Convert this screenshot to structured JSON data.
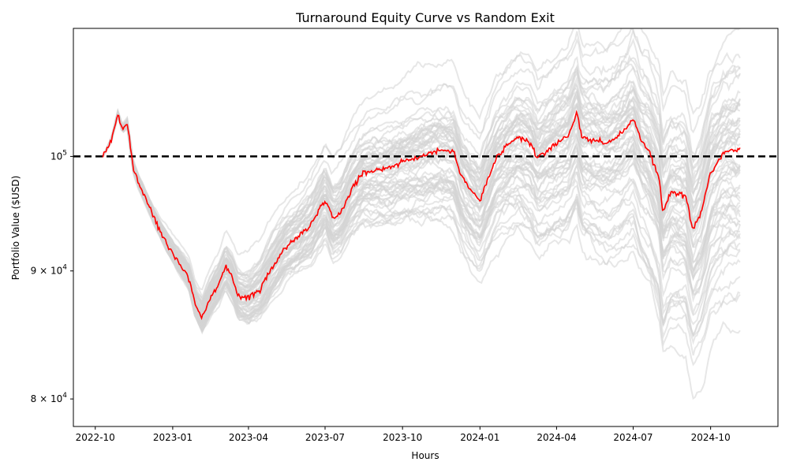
{
  "chart_data": {
    "type": "line",
    "title": "Turnaround Equity Curve vs Random Exit",
    "xlabel": "Hours",
    "ylabel": "Portfolio Value ($USD)",
    "y_scale": "log",
    "xlim": [
      "2022-09-05",
      "2024-12-20"
    ],
    "ylim": [
      78000,
      112500
    ],
    "grid": false,
    "x_ticks": [
      "2022-10",
      "2023-01",
      "2023-04",
      "2023-07",
      "2023-10",
      "2024-01",
      "2024-04",
      "2024-07",
      "2024-10"
    ],
    "y_ticks": [
      {
        "value": 80000,
        "base": "8",
        "exp": "4"
      },
      {
        "value": 90000,
        "base": "9",
        "exp": "4"
      },
      {
        "value": 100000,
        "base": "10",
        "exp": "5",
        "plain_power": true
      }
    ],
    "reference_line": {
      "value": 100000,
      "style": "dashed",
      "color": "#000000"
    },
    "main_series": {
      "color": "#ff0000",
      "x": [
        "2022-10-10",
        "2022-10-20",
        "2022-10-28",
        "2022-11-02",
        "2022-11-08",
        "2022-11-15",
        "2022-11-22",
        "2022-12-01",
        "2022-12-10",
        "2022-12-20",
        "2023-01-01",
        "2023-01-10",
        "2023-01-20",
        "2023-01-28",
        "2023-02-05",
        "2023-02-15",
        "2023-02-25",
        "2023-03-05",
        "2023-03-12",
        "2023-03-20",
        "2023-04-01",
        "2023-04-15",
        "2023-05-01",
        "2023-05-15",
        "2023-06-01",
        "2023-06-15",
        "2023-07-01",
        "2023-07-10",
        "2023-07-20",
        "2023-08-01",
        "2023-08-15",
        "2023-09-01",
        "2023-09-15",
        "2023-10-01",
        "2023-10-15",
        "2023-11-01",
        "2023-11-15",
        "2023-12-01",
        "2023-12-10",
        "2023-12-20",
        "2024-01-01",
        "2024-01-10",
        "2024-01-20",
        "2024-02-01",
        "2024-02-15",
        "2024-03-01",
        "2024-03-10",
        "2024-03-20",
        "2024-04-01",
        "2024-04-15",
        "2024-04-25",
        "2024-05-01",
        "2024-05-15",
        "2024-06-01",
        "2024-06-15",
        "2024-07-01",
        "2024-07-10",
        "2024-07-20",
        "2024-08-01",
        "2024-08-05",
        "2024-08-15",
        "2024-09-01",
        "2024-09-10",
        "2024-09-20",
        "2024-10-01",
        "2024-10-15",
        "2024-10-25",
        "2024-11-01",
        "2024-11-05"
      ],
      "y": [
        100000,
        101500,
        104000,
        102500,
        103000,
        99000,
        97500,
        96000,
        94500,
        93000,
        91500,
        90500,
        89500,
        87200,
        86300,
        87800,
        89000,
        90300,
        89500,
        88000,
        87800,
        88500,
        90500,
        92000,
        93000,
        94000,
        96200,
        94500,
        95000,
        97000,
        98500,
        98800,
        99000,
        99500,
        99800,
        100300,
        100600,
        100400,
        98300,
        97000,
        96000,
        97800,
        99800,
        100800,
        101800,
        101200,
        99800,
        100500,
        101200,
        102000,
        104000,
        101800,
        101500,
        101200,
        102000,
        103500,
        101500,
        100500,
        98000,
        95000,
        96800,
        96500,
        93500,
        95000,
        98500,
        100200,
        100600,
        100500,
        100800
      ]
    },
    "random_exit_series": {
      "color": "#d3d3d3",
      "count": 60
    }
  }
}
